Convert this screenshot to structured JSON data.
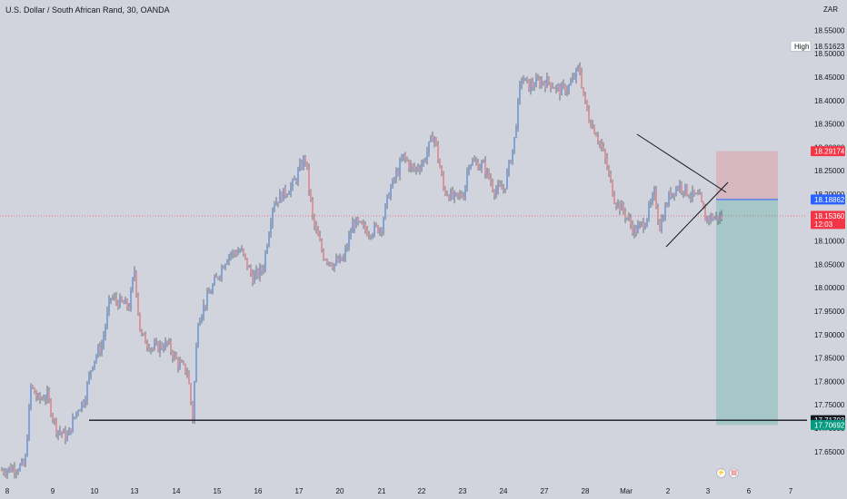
{
  "title": "U.S. Dollar / South African Rand, 30, OANDA",
  "currency_unit": "ZAR",
  "high_label": "High",
  "icons": {
    "flash": "flash-icon",
    "flag": "us-flag-icon"
  },
  "colors": {
    "background": "#d1d4dc",
    "up": "#5b8cd9",
    "down": "#e07a7a",
    "stop_zone": "rgba(242,54,69,0.18)",
    "target_zone": "rgba(8,153,129,0.22)",
    "entry_line": "#2962ff",
    "current_price": "#f23645",
    "target": "#089981"
  },
  "chart_data": {
    "type": "candlestick",
    "symbol": "USDZAR",
    "interval": "30",
    "y_ticks": [
      "18.55000",
      "18.50000",
      "18.45000",
      "18.40000",
      "18.35000",
      "18.30000",
      "18.25000",
      "18.20000",
      "18.15000",
      "18.10000",
      "18.05000",
      "18.00000",
      "17.95000",
      "17.90000",
      "17.85000",
      "17.80000",
      "17.75000",
      "17.70000",
      "17.65000"
    ],
    "y_tick_values": [
      18.55,
      18.5,
      18.45,
      18.4,
      18.35,
      18.3,
      18.25,
      18.2,
      18.15,
      18.1,
      18.05,
      18.0,
      17.95,
      17.9,
      17.85,
      17.8,
      17.75,
      17.7,
      17.65
    ],
    "ylim": [
      17.635,
      18.575
    ],
    "x_ticks": [
      "8",
      "9",
      "10",
      "13",
      "14",
      "15",
      "16",
      "17",
      "20",
      "21",
      "22",
      "23",
      "24",
      "27",
      "28",
      "Mar",
      "2",
      "3",
      "6",
      "7"
    ],
    "price_labels": {
      "high": "18.51623",
      "stop": "18.29174",
      "entry": "18.18862",
      "current": "18.15360",
      "countdown": "12:03",
      "support": "17.71703",
      "target": "17.70692"
    },
    "levels": {
      "high": 18.51623,
      "stop": 18.29174,
      "entry": 18.18862,
      "current": 18.1536,
      "support": 17.71703,
      "target": 17.70692
    },
    "path_points": [
      [
        0,
        17.61
      ],
      [
        2.3,
        17.62
      ],
      [
        2.9,
        17.79
      ],
      [
        3.6,
        17.76
      ],
      [
        4.5,
        17.77
      ],
      [
        5.4,
        17.7
      ],
      [
        6.5,
        17.68
      ],
      [
        7.5,
        17.74
      ],
      [
        8.2,
        17.76
      ],
      [
        9,
        17.84
      ],
      [
        10,
        17.88
      ],
      [
        10.8,
        17.98
      ],
      [
        11.5,
        17.97
      ],
      [
        12.7,
        17.96
      ],
      [
        13.2,
        18.04
      ],
      [
        13.8,
        17.9
      ],
      [
        15,
        17.87
      ],
      [
        16.5,
        17.88
      ],
      [
        17.5,
        17.84
      ],
      [
        18.5,
        17.82
      ],
      [
        19,
        17.72
      ],
      [
        19.5,
        17.93
      ],
      [
        20.5,
        17.98
      ],
      [
        22.5,
        18.07
      ],
      [
        23.8,
        18.08
      ],
      [
        25,
        18.02
      ],
      [
        26,
        18.04
      ],
      [
        27,
        18.18
      ],
      [
        29,
        18.22
      ],
      [
        30.2,
        18.28
      ],
      [
        31,
        18.14
      ],
      [
        32,
        18.07
      ],
      [
        33,
        18.05
      ],
      [
        34,
        18.06
      ],
      [
        35,
        18.14
      ],
      [
        36.5,
        18.12
      ],
      [
        37.8,
        18.13
      ],
      [
        38.5,
        18.2
      ],
      [
        40,
        18.28
      ],
      [
        41,
        18.25
      ],
      [
        42,
        18.27
      ],
      [
        43,
        18.33
      ],
      [
        44,
        18.21
      ],
      [
        45,
        18.19
      ],
      [
        46,
        18.2
      ],
      [
        46.5,
        18.27
      ],
      [
        48,
        18.26
      ],
      [
        49,
        18.21
      ],
      [
        50,
        18.21
      ],
      [
        51,
        18.31
      ],
      [
        51.7,
        18.45
      ],
      [
        52.5,
        18.43
      ],
      [
        53.5,
        18.44
      ],
      [
        54.5,
        18.44
      ],
      [
        55.5,
        18.42
      ],
      [
        56.5,
        18.43
      ],
      [
        57.5,
        18.47
      ],
      [
        58,
        18.4
      ],
      [
        58.5,
        18.36
      ],
      [
        59.2,
        18.33
      ],
      [
        60,
        18.28
      ],
      [
        61,
        18.19
      ],
      [
        62,
        18.16
      ],
      [
        63,
        18.12
      ],
      [
        64,
        18.14
      ],
      [
        65,
        18.2
      ],
      [
        65.5,
        18.13
      ],
      [
        66.5,
        18.2
      ],
      [
        67.5,
        18.22
      ],
      [
        68.5,
        18.2
      ],
      [
        69.5,
        18.19
      ],
      [
        70,
        18.15
      ]
    ],
    "triangle_pattern": {
      "upper_line": [
        [
          61,
          18.275
        ],
        [
          69.8,
          18.195
        ]
      ],
      "lower_line": [
        [
          64.6,
          18.085
        ],
        [
          70.2,
          18.21
        ]
      ]
    },
    "position_box": {
      "entry": 18.18862,
      "stop": 18.29174,
      "target": 17.70692,
      "x_start": 69.6,
      "x_end": 75.5
    },
    "support_line": {
      "value": 17.71703,
      "x_start": 8.8,
      "x_end": 78
    }
  }
}
